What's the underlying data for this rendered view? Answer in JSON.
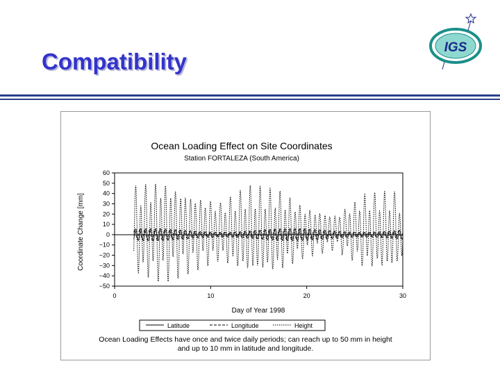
{
  "slide": {
    "title": "Compatibility",
    "logo_text": "IGS",
    "caption_lines": [
      "Ocean Loading Effects have once and twice daily periods; can reach up to 50 mm in height",
      "and up to 10 mm in latitude and longitude."
    ],
    "colors": {
      "title": "#3333cc",
      "rule": "#2b3f8c",
      "logo_ring": "#1a8f8a",
      "logo_text": "#1a2a8a"
    }
  },
  "chart_data": {
    "type": "line",
    "title": "Ocean Loading Effect on Site Coordinates",
    "subtitle": "Station FORTALEZA (South America)",
    "xlabel": "Day of Year 1998",
    "ylabel": "Coordinate Change [mm]",
    "xlim": [
      0,
      30
    ],
    "ylim": [
      -50,
      60
    ],
    "xticks": [
      "0",
      "10",
      "20",
      "30"
    ],
    "yticks": [
      "60",
      "50",
      "40",
      "30",
      "20",
      "10",
      "0",
      "−10",
      "−20",
      "−30",
      "−40",
      "−50"
    ],
    "legend_placement": "bottom",
    "grid": false,
    "series": [
      {
        "name": "Latitude",
        "style": "solid",
        "x_range": [
          2,
          30
        ],
        "amplitude_mm": 6,
        "description_values": "semi-diurnal oscillation approx. ±6 mm"
      },
      {
        "name": "Longitude",
        "style": "dashed",
        "x_range": [
          2,
          30
        ],
        "amplitude_mm": 5,
        "description_values": "semi-diurnal oscillation approx. ±5 mm"
      },
      {
        "name": "Height",
        "style": "dotted",
        "x_range": [
          2,
          30
        ],
        "envelope_days": [
          2,
          5,
          8,
          11,
          14,
          17,
          20,
          23,
          26,
          29,
          30
        ],
        "envelope_mm": [
          45,
          52,
          40,
          30,
          45,
          42,
          25,
          18,
          38,
          40,
          32
        ],
        "description_values": "once/twice daily oscillation, peaks up to ~55 mm"
      }
    ]
  }
}
